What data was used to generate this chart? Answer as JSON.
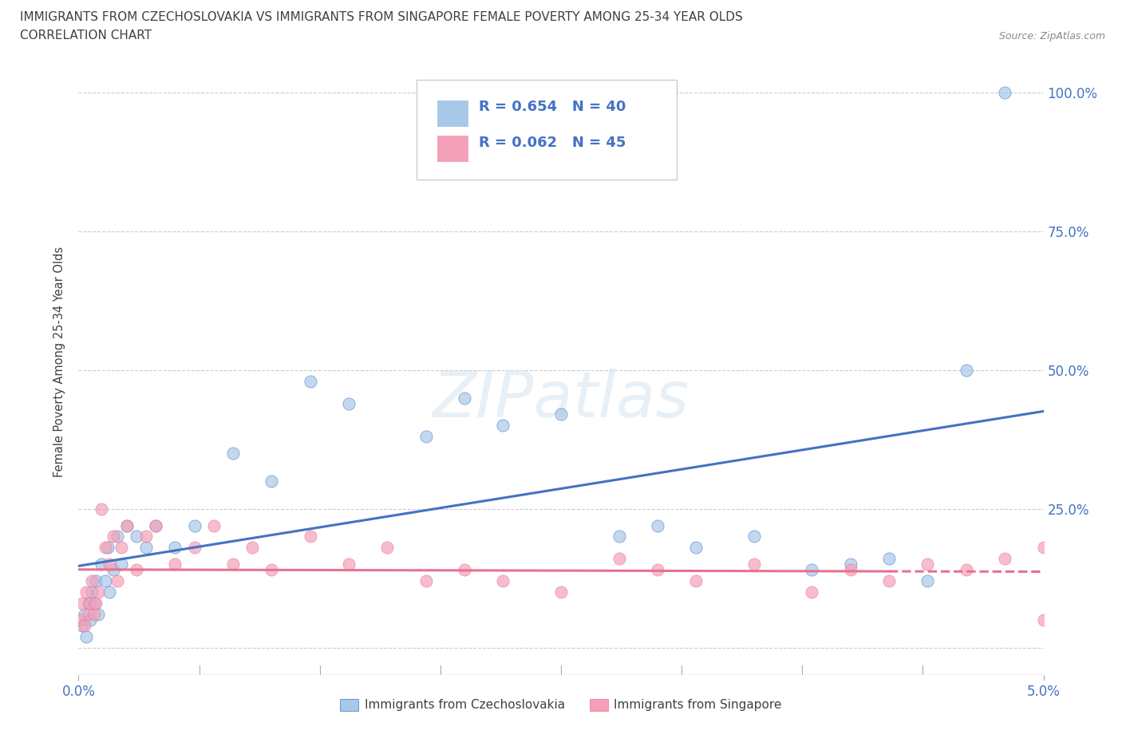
{
  "title_line1": "IMMIGRANTS FROM CZECHOSLOVAKIA VS IMMIGRANTS FROM SINGAPORE FEMALE POVERTY AMONG 25-34 YEAR OLDS",
  "title_line2": "CORRELATION CHART",
  "source_text": "Source: ZipAtlas.com",
  "ylabel": "Female Poverty Among 25-34 Year Olds",
  "xlim": [
    0.0,
    0.05
  ],
  "ylim": [
    -0.05,
    1.08
  ],
  "x_ticks": [
    0.0,
    0.05
  ],
  "x_tick_labels": [
    "0.0%",
    "5.0%"
  ],
  "y_ticks": [
    0.0,
    0.25,
    0.5,
    0.75,
    1.0
  ],
  "y_tick_labels": [
    "",
    "25.0%",
    "50.0%",
    "75.0%",
    "100.0%"
  ],
  "watermark": "ZIPatlas",
  "color_czecho": "#a8c8e8",
  "color_singapore": "#f4a0b8",
  "color_line_czecho": "#4472c4",
  "color_line_singapore": "#e87090",
  "color_title": "#404040",
  "color_axis_label": "#4472c4",
  "background": "#ffffff",
  "grid_color": "#cccccc",
  "czecho_x": [
    0.0002,
    0.0003,
    0.0004,
    0.0005,
    0.0006,
    0.0007,
    0.0008,
    0.0009,
    0.001,
    0.0012,
    0.0014,
    0.0015,
    0.0016,
    0.0018,
    0.002,
    0.0022,
    0.0025,
    0.003,
    0.0035,
    0.004,
    0.005,
    0.006,
    0.008,
    0.01,
    0.012,
    0.014,
    0.018,
    0.02,
    0.022,
    0.025,
    0.028,
    0.03,
    0.032,
    0.035,
    0.038,
    0.04,
    0.042,
    0.044,
    0.046,
    0.048
  ],
  "czecho_y": [
    0.04,
    0.06,
    0.02,
    0.08,
    0.05,
    0.1,
    0.08,
    0.12,
    0.06,
    0.15,
    0.12,
    0.18,
    0.1,
    0.14,
    0.2,
    0.15,
    0.22,
    0.2,
    0.18,
    0.22,
    0.18,
    0.22,
    0.35,
    0.3,
    0.48,
    0.44,
    0.38,
    0.45,
    0.4,
    0.42,
    0.2,
    0.22,
    0.18,
    0.2,
    0.14,
    0.15,
    0.16,
    0.12,
    0.5,
    1.0
  ],
  "singapore_x": [
    0.0001,
    0.0002,
    0.0003,
    0.0004,
    0.0005,
    0.0006,
    0.0007,
    0.0008,
    0.0009,
    0.001,
    0.0012,
    0.0014,
    0.0016,
    0.0018,
    0.002,
    0.0022,
    0.0025,
    0.003,
    0.0035,
    0.004,
    0.005,
    0.006,
    0.007,
    0.008,
    0.009,
    0.01,
    0.012,
    0.014,
    0.016,
    0.018,
    0.02,
    0.022,
    0.025,
    0.028,
    0.03,
    0.032,
    0.035,
    0.038,
    0.04,
    0.042,
    0.044,
    0.046,
    0.048,
    0.05,
    0.05
  ],
  "singapore_y": [
    0.05,
    0.08,
    0.04,
    0.1,
    0.06,
    0.08,
    0.12,
    0.06,
    0.08,
    0.1,
    0.25,
    0.18,
    0.15,
    0.2,
    0.12,
    0.18,
    0.22,
    0.14,
    0.2,
    0.22,
    0.15,
    0.18,
    0.22,
    0.15,
    0.18,
    0.14,
    0.2,
    0.15,
    0.18,
    0.12,
    0.14,
    0.12,
    0.1,
    0.16,
    0.14,
    0.12,
    0.15,
    0.1,
    0.14,
    0.12,
    0.15,
    0.14,
    0.16,
    0.18,
    0.05
  ]
}
